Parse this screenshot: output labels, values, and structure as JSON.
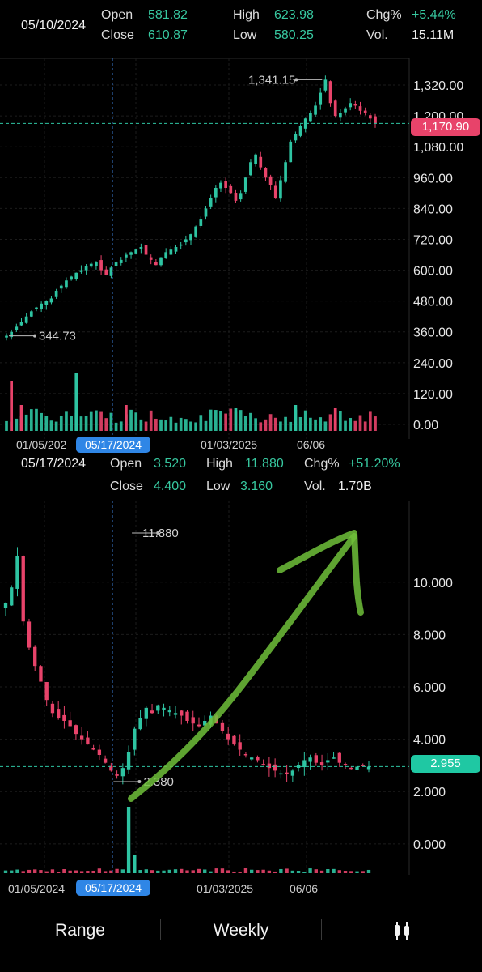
{
  "panel1": {
    "header": {
      "date": "05/10/2024",
      "open_label": "Open",
      "open": "581.82",
      "close_label": "Close",
      "close": "610.87",
      "high_label": "High",
      "high": "623.98",
      "low_label": "Low",
      "low": "580.25",
      "chg_label": "Chg%",
      "chg": "+5.44%",
      "vol_label": "Vol.",
      "vol": "15.11M"
    },
    "price_label": "1,170.90",
    "high_marker": "1,341.15",
    "low_marker": "344.73",
    "y_ticks": [
      "1,320.00",
      "1,200.00",
      "1,080.00",
      "960.00",
      "840.00",
      "720.00",
      "600.00",
      "480.00",
      "360.00",
      "240.00",
      "120.00",
      "0.00"
    ],
    "x_ticks": [
      "01/05/202",
      "01/03/2025",
      "06/06"
    ],
    "crosshair_date": "05/17/2024"
  },
  "panel2": {
    "header": {
      "date": "05/17/2024",
      "open_label": "Open",
      "open": "3.520",
      "close_label": "Close",
      "close": "4.400",
      "high_label": "High",
      "high": "11.880",
      "low_label": "Low",
      "low": "3.160",
      "chg_label": "Chg%",
      "chg": "+51.20%",
      "vol_label": "Vol.",
      "vol": "1.70B"
    },
    "price_label": "2.955",
    "high_marker": "11.880",
    "low_marker": "2.380",
    "y_ticks": [
      "10.000",
      "8.000",
      "6.000",
      "4.000",
      "2.000",
      "0.000"
    ],
    "x_ticks": [
      "01/05/2024",
      "01/03/2025",
      "06/06"
    ],
    "crosshair_date": "05/17/2024"
  },
  "bottom_bar": {
    "range_label": "Range",
    "weekly_label": "Weekly",
    "chart_type_icon": "candlestick-icon"
  },
  "colors": {
    "up": "#2ec4a2",
    "down": "#e8436a",
    "crosshair": "#3a7bd5",
    "annotation": "#6fbf3a"
  },
  "chart_data": [
    {
      "type": "candlestick",
      "title": "",
      "y_ticks": [
        0,
        120,
        240,
        360,
        480,
        600,
        720,
        840,
        960,
        1080,
        1200,
        1320
      ],
      "ylim": [
        0,
        1380
      ],
      "x_tick_labels": [
        "01/05/202",
        "01/03/2025",
        "06/06"
      ],
      "last_price": 1170.9,
      "period_high": 1341.15,
      "period_low": 344.73,
      "selected": {
        "date": "05/10/2024",
        "open": 581.82,
        "close": 610.87,
        "high": 623.98,
        "low": 580.25,
        "chg_pct": 5.44,
        "volume": "15.11M"
      },
      "close_path": [
        345,
        360,
        380,
        400,
        420,
        440,
        455,
        470,
        480,
        490,
        520,
        540,
        560,
        575,
        590,
        600,
        615,
        625,
        630,
        600,
        580,
        610,
        630,
        640,
        660,
        670,
        680,
        690,
        660,
        640,
        620,
        650,
        670,
        680,
        690,
        700,
        720,
        740,
        770,
        800,
        840,
        880,
        920,
        940,
        920,
        900,
        870,
        900,
        960,
        1020,
        1050,
        1000,
        960,
        930,
        880,
        950,
        1020,
        1100,
        1130,
        1160,
        1190,
        1210,
        1240,
        1290,
        1341,
        1250,
        1200,
        1210,
        1230,
        1250,
        1240,
        1220,
        1210,
        1190,
        1171
      ]
    },
    {
      "type": "candlestick",
      "title": "",
      "y_ticks": [
        0,
        2,
        4,
        6,
        8,
        10
      ],
      "ylim": [
        -0.5,
        12.5
      ],
      "x_tick_labels": [
        "01/05/2024",
        "01/03/2025",
        "06/06"
      ],
      "last_price": 2.955,
      "period_high": 11.88,
      "period_low": 2.38,
      "selected": {
        "date": "05/17/2024",
        "open": 3.52,
        "close": 4.4,
        "high": 11.88,
        "low": 3.16,
        "chg_pct": 51.2,
        "volume": "1.70B"
      },
      "close_path": [
        9.2,
        9.8,
        11.0,
        8.5,
        7.5,
        6.8,
        6.2,
        5.5,
        5.0,
        4.8,
        4.7,
        4.5,
        4.2,
        4.0,
        3.8,
        3.6,
        3.4,
        3.1,
        2.8,
        2.6,
        2.9,
        3.5,
        4.4,
        4.8,
        5.2,
        5.0,
        5.3,
        5.2,
        5.1,
        5.0,
        4.9,
        4.7,
        4.6,
        4.5,
        4.7,
        4.9,
        4.6,
        4.3,
        4.0,
        3.8,
        3.6,
        3.4,
        3.3,
        3.2,
        3.0,
        2.9,
        2.8,
        2.7,
        2.7,
        2.8,
        3.0,
        3.2,
        3.3,
        3.1,
        3.0,
        3.2,
        3.3,
        3.1,
        3.0,
        2.9,
        2.95,
        3.0,
        2.95
      ]
    }
  ]
}
